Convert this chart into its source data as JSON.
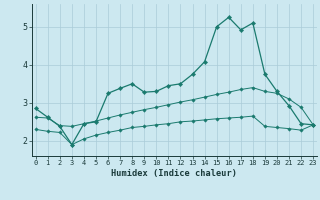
{
  "title": "",
  "xlabel": "Humidex (Indice chaleur)",
  "bg_color": "#cce8f0",
  "grid_color": "#aaccd8",
  "line_color": "#1a7a6e",
  "x_ticks": [
    0,
    1,
    2,
    3,
    4,
    5,
    6,
    7,
    8,
    9,
    10,
    11,
    12,
    13,
    14,
    15,
    16,
    17,
    18,
    19,
    20,
    21,
    22,
    23
  ],
  "ylim": [
    1.6,
    5.6
  ],
  "xlim": [
    -0.3,
    23.3
  ],
  "y_ticks": [
    2,
    3,
    4,
    5
  ],
  "line1_x": [
    0,
    1,
    2,
    3,
    4,
    5,
    6,
    7,
    8,
    9,
    10,
    11,
    12,
    13,
    14,
    15,
    16,
    17,
    18,
    19,
    20,
    21,
    22,
    23
  ],
  "line1_y": [
    2.85,
    2.62,
    2.38,
    1.9,
    2.45,
    2.5,
    3.25,
    3.38,
    3.5,
    3.28,
    3.3,
    3.45,
    3.5,
    3.75,
    4.08,
    5.0,
    5.25,
    4.92,
    5.1,
    3.75,
    3.3,
    2.92,
    2.45,
    2.42
  ],
  "line2_x": [
    0,
    1,
    2,
    3,
    4,
    5,
    6,
    7,
    8,
    9,
    10,
    11,
    12,
    13,
    14,
    15,
    16,
    17,
    18,
    19,
    20,
    21,
    22,
    23
  ],
  "line2_y": [
    2.62,
    2.6,
    2.4,
    2.38,
    2.45,
    2.52,
    2.6,
    2.68,
    2.75,
    2.82,
    2.88,
    2.95,
    3.02,
    3.08,
    3.15,
    3.22,
    3.28,
    3.35,
    3.4,
    3.3,
    3.25,
    3.1,
    2.88,
    2.42
  ],
  "line3_x": [
    0,
    1,
    2,
    3,
    4,
    5,
    6,
    7,
    8,
    9,
    10,
    11,
    12,
    13,
    14,
    15,
    16,
    17,
    18,
    19,
    20,
    21,
    22,
    23
  ],
  "line3_y": [
    2.3,
    2.25,
    2.22,
    1.9,
    2.05,
    2.15,
    2.22,
    2.28,
    2.35,
    2.38,
    2.42,
    2.45,
    2.5,
    2.52,
    2.55,
    2.58,
    2.6,
    2.62,
    2.65,
    2.38,
    2.35,
    2.32,
    2.28,
    2.42
  ]
}
